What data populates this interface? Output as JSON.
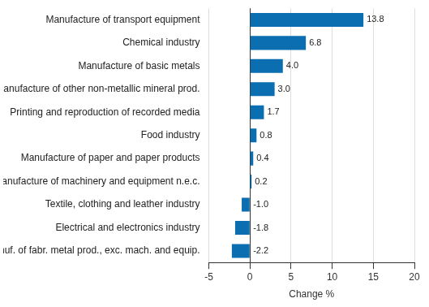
{
  "chart_data": {
    "type": "bar",
    "orientation": "horizontal",
    "categories": [
      "Manufacture of transport equipment",
      "Chemical industry",
      "Manufacture of basic metals",
      "Manufacture of other non-metallic mineral prod.",
      "Printing and reproduction of recorded media",
      "Food industry",
      "Manufacture of paper and paper products",
      "Manufacture of machinery and equipment n.e.c.",
      "Textile, clothing and leather industry",
      "Electrical and electronics industry",
      "Manuf. of fabr. metal prod., exc. mach. and equip."
    ],
    "values": [
      13.8,
      6.8,
      4.0,
      3.0,
      1.7,
      0.8,
      0.4,
      0.2,
      -1.0,
      -1.8,
      -2.2
    ],
    "value_labels": [
      "13.8",
      "6.8",
      "4.0",
      "3.0",
      "1.7",
      "0.8",
      "0.4",
      "0.2",
      "-1.0",
      "-1.8",
      "-2.2"
    ],
    "color": "#0a6eb0",
    "x_label": "Change %",
    "xlim": [
      -5,
      20
    ],
    "xticks": [
      -5,
      0,
      5,
      10,
      15,
      20
    ],
    "grid": true,
    "data_labels": true
  }
}
